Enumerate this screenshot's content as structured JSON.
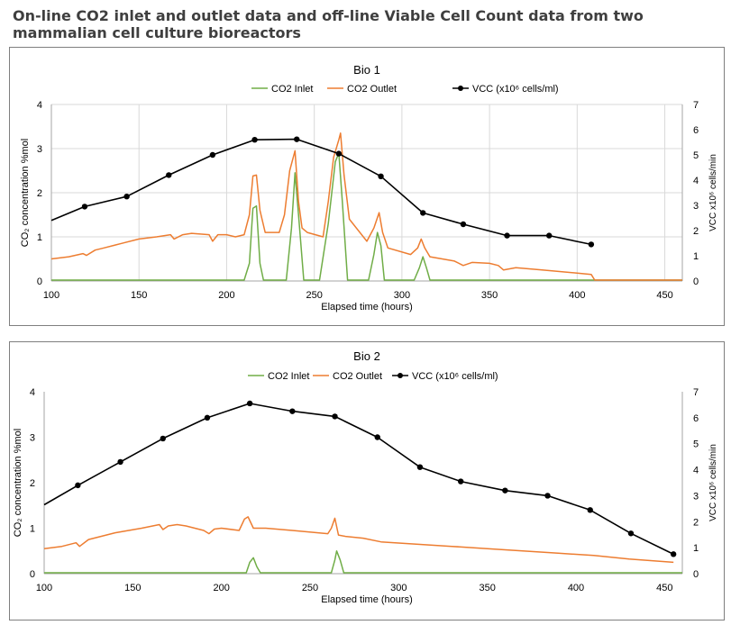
{
  "page": {
    "title": "On-line CO2 inlet and outlet data and off-line Viable Cell Count data from two mammalian cell culture bioreactors"
  },
  "colors": {
    "co2_inlet": "#70ad47",
    "co2_outlet": "#ed7d31",
    "vcc": "#000000",
    "grid": "#d9d9d9",
    "axis": "#a6a6a6"
  },
  "chart_data": [
    {
      "type": "line",
      "title": "Bio 1",
      "xlabel": "Elapsed time (hours)",
      "ylabel": "CO₂ concentration %mol",
      "y2label": "VCC x10⁶ cells/min",
      "xlim": [
        100,
        460
      ],
      "xticks": [
        "100",
        "150",
        "200",
        "250",
        "300",
        "350",
        "400",
        "450"
      ],
      "ylim": [
        0,
        4
      ],
      "yticks": [
        "0",
        "1",
        "2",
        "3",
        "4"
      ],
      "y2lim": [
        0,
        7
      ],
      "y2ticks": [
        "0",
        "1",
        "2",
        "3",
        "4",
        "5",
        "6",
        "7"
      ],
      "grid": true,
      "legend_position": "top",
      "legend": [
        "CO2 Inlet",
        "CO2 Outlet",
        "VCC (x10⁶ cells/ml)"
      ],
      "series": [
        {
          "name": "CO2 Inlet",
          "axis": "left",
          "x": [
            100,
            210,
            213,
            215,
            217,
            219,
            221,
            234,
            237,
            239,
            241,
            244,
            253,
            258,
            262,
            264,
            266,
            269,
            281,
            284,
            286,
            288,
            290,
            307,
            310,
            312,
            314,
            316,
            460
          ],
          "y": [
            0.02,
            0.02,
            0.4,
            1.65,
            1.7,
            0.4,
            0.02,
            0.02,
            1.2,
            2.45,
            1.5,
            0.02,
            0.02,
            1.3,
            2.7,
            2.9,
            1.8,
            0.02,
            0.02,
            0.6,
            1.1,
            0.8,
            0.02,
            0.02,
            0.3,
            0.55,
            0.3,
            0.02,
            0.02
          ]
        },
        {
          "name": "CO2 Outlet",
          "axis": "left",
          "x": [
            100,
            110,
            118,
            120,
            125,
            130,
            140,
            150,
            160,
            168,
            170,
            175,
            180,
            190,
            192,
            195,
            200,
            205,
            210,
            213,
            215,
            217,
            219,
            222,
            230,
            233,
            236,
            239,
            241,
            243,
            246,
            255,
            258,
            261,
            264,
            265,
            267,
            270,
            280,
            284,
            287,
            289,
            292,
            305,
            309,
            311,
            313,
            316,
            330,
            335,
            340,
            350,
            355,
            358,
            365,
            380,
            400,
            408,
            410,
            420,
            460
          ],
          "y": [
            0.5,
            0.55,
            0.62,
            0.58,
            0.7,
            0.75,
            0.85,
            0.95,
            1.0,
            1.05,
            0.95,
            1.05,
            1.08,
            1.05,
            0.9,
            1.05,
            1.05,
            1.0,
            1.05,
            1.5,
            2.38,
            2.4,
            1.6,
            1.1,
            1.1,
            1.5,
            2.5,
            2.95,
            1.8,
            1.2,
            1.1,
            1.0,
            1.8,
            2.8,
            3.2,
            3.35,
            2.4,
            1.4,
            0.9,
            1.2,
            1.55,
            1.1,
            0.75,
            0.6,
            0.75,
            0.95,
            0.75,
            0.55,
            0.45,
            0.35,
            0.42,
            0.4,
            0.35,
            0.25,
            0.3,
            0.25,
            0.18,
            0.15,
            0.02,
            0.02,
            0.02
          ]
        },
        {
          "name": "VCC (x10⁶ cells/ml)",
          "axis": "right",
          "markers": true,
          "x": [
            100,
            119,
            143,
            167,
            192,
            216,
            240,
            264,
            288,
            312,
            335,
            360,
            384,
            408
          ],
          "y": [
            2.4,
            2.95,
            3.35,
            4.2,
            5.0,
            5.6,
            5.62,
            5.05,
            4.15,
            2.7,
            2.25,
            1.8,
            1.8,
            1.45
          ]
        }
      ]
    },
    {
      "type": "line",
      "title": "Bio 2",
      "xlabel": "Elapsed time (hours)",
      "ylabel": "CO₂ concentration %mol",
      "y2label": "VCC x10⁶ cells/min",
      "xlim": [
        100,
        460
      ],
      "xticks": [
        "100",
        "150",
        "200",
        "250",
        "300",
        "350",
        "400",
        "450"
      ],
      "ylim": [
        0,
        4
      ],
      "yticks": [
        "0",
        "1",
        "2",
        "3",
        "4"
      ],
      "y2lim": [
        0,
        7
      ],
      "y2ticks": [
        "0",
        "1",
        "2",
        "3",
        "4",
        "5",
        "6",
        "7"
      ],
      "grid": false,
      "legend_position": "top",
      "legend": [
        "CO2 Inlet",
        "CO2 Outlet",
        "VCC (x10⁶ cells/ml)"
      ],
      "series": [
        {
          "name": "CO2 Inlet",
          "axis": "left",
          "x": [
            100,
            214,
            216,
            218,
            220,
            222,
            262,
            264,
            265,
            267,
            269,
            460
          ],
          "y": [
            0.02,
            0.02,
            0.25,
            0.35,
            0.15,
            0.02,
            0.02,
            0.3,
            0.5,
            0.3,
            0.02,
            0.02
          ]
        },
        {
          "name": "CO2 Outlet",
          "axis": "left",
          "x": [
            100,
            110,
            118,
            120,
            125,
            140,
            155,
            165,
            167,
            170,
            175,
            180,
            190,
            193,
            196,
            200,
            210,
            213,
            215,
            218,
            220,
            225,
            240,
            260,
            262,
            264,
            266,
            270,
            280,
            290,
            310,
            330,
            350,
            370,
            390,
            410,
            430,
            455
          ],
          "y": [
            0.55,
            0.6,
            0.68,
            0.6,
            0.75,
            0.9,
            1.0,
            1.08,
            0.97,
            1.05,
            1.08,
            1.05,
            0.95,
            0.88,
            0.98,
            1.0,
            0.95,
            1.2,
            1.25,
            1.0,
            1.0,
            1.0,
            0.95,
            0.88,
            1.0,
            1.22,
            0.85,
            0.82,
            0.78,
            0.7,
            0.65,
            0.6,
            0.55,
            0.5,
            0.45,
            0.4,
            0.32,
            0.25
          ]
        },
        {
          "name": "VCC (x10⁶ cells/ml)",
          "axis": "right",
          "markers": true,
          "x": [
            100,
            119,
            143,
            167,
            192,
            216,
            240,
            264,
            288,
            312,
            335,
            360,
            384,
            408,
            431,
            455
          ],
          "y": [
            2.65,
            3.4,
            4.3,
            5.2,
            6.0,
            6.55,
            6.25,
            6.05,
            5.25,
            4.1,
            3.55,
            3.2,
            3.0,
            2.45,
            1.55,
            0.75
          ]
        }
      ]
    }
  ]
}
